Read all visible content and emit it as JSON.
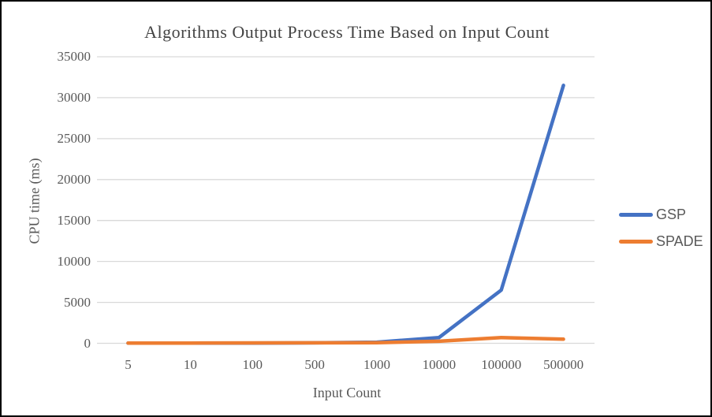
{
  "frame": {
    "border_color": "#000000",
    "background_color": "#ffffff"
  },
  "chart_data": {
    "type": "line",
    "title": "Algorithms Output Process Time Based on Input Count",
    "xlabel": "Input Count",
    "ylabel": "CPU time (ms)",
    "categories": [
      "5",
      "10",
      "100",
      "500",
      "1000",
      "10000",
      "100000",
      "500000"
    ],
    "series": [
      {
        "name": "GSP",
        "color": "#4472C4",
        "values": [
          15,
          15,
          30,
          55,
          130,
          700,
          6500,
          31500
        ]
      },
      {
        "name": "SPADE",
        "color": "#ED7D31",
        "values": [
          30,
          30,
          45,
          55,
          80,
          250,
          700,
          500
        ]
      }
    ],
    "ylim": [
      0,
      35000
    ],
    "yticks": [
      0,
      5000,
      10000,
      15000,
      20000,
      25000,
      30000,
      35000
    ],
    "grid": true,
    "legend_position": "right",
    "gridline_color": "#D9D9D9",
    "tick_text_color": "#595959",
    "title_color": "#444444"
  }
}
